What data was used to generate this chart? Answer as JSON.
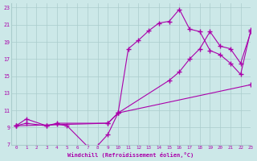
{
  "xlabel": "Windchill (Refroidissement éolien,°C)",
  "bg_color": "#cce8e8",
  "grid_color": "#aacccc",
  "line_color": "#aa00aa",
  "xlim": [
    -0.5,
    23
  ],
  "ylim": [
    7,
    23.5
  ],
  "xticks": [
    0,
    1,
    2,
    3,
    4,
    5,
    6,
    7,
    8,
    9,
    10,
    11,
    12,
    13,
    14,
    15,
    16,
    17,
    18,
    19,
    20,
    21,
    22,
    23
  ],
  "yticks": [
    7,
    9,
    11,
    13,
    15,
    17,
    19,
    21,
    23
  ],
  "line1_x": [
    0,
    1,
    3,
    4,
    5,
    7,
    8,
    9,
    10,
    11,
    12,
    13,
    14,
    15,
    16,
    17,
    18,
    19,
    20,
    21,
    22,
    23
  ],
  "line1_y": [
    9.2,
    10.0,
    9.2,
    9.4,
    9.2,
    6.8,
    6.9,
    8.2,
    10.7,
    18.2,
    19.2,
    20.3,
    21.2,
    21.4,
    22.8,
    20.5,
    20.2,
    18.0,
    17.5,
    16.5,
    15.2,
    20.4
  ],
  "line2_x": [
    0,
    1,
    3,
    4,
    9,
    10,
    15,
    16,
    17,
    18,
    19,
    20,
    21,
    22,
    23
  ],
  "line2_y": [
    9.2,
    9.5,
    9.2,
    9.5,
    9.5,
    10.7,
    14.5,
    15.5,
    17.0,
    18.2,
    20.2,
    18.5,
    18.2,
    16.5,
    20.2
  ],
  "line3_x": [
    0,
    9,
    10,
    23
  ],
  "line3_y": [
    9.2,
    9.5,
    10.7,
    14.0
  ]
}
